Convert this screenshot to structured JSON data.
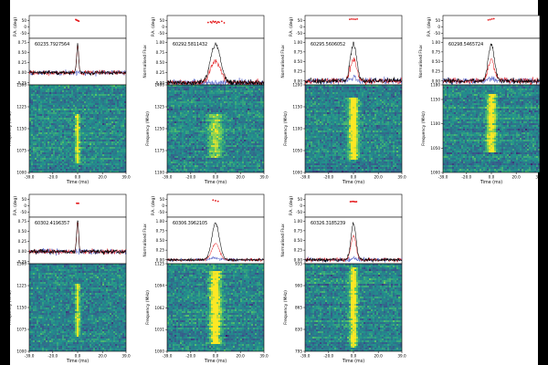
{
  "colors": {
    "page_background": "#000000",
    "figure_background": "#ffffff",
    "total_intensity": "#000000",
    "linear_polarisation": "#e41a1c",
    "circular_polarisation": "#3b4cc0",
    "pa_points": "#e41a1c",
    "dynamic_spectrum_colormap": "viridis"
  },
  "chart_data": [
    {
      "type": "line",
      "id": "panel-1",
      "label": "60235.7927564",
      "pa_ylabel": "P.A. (deg)",
      "flux_ylabel": "Normalised Flux",
      "freq_ylabel": "Frequency (MHz)",
      "xlabel": "Time (ms)",
      "pa_ticks": [
        "50",
        "0",
        "-50"
      ],
      "flux_ticks": [
        "0.75",
        "0.50",
        "0.25",
        "0.00",
        "-0.25"
      ],
      "freq_ticks": [
        "1300",
        "1225",
        "1150",
        "1075",
        "1000"
      ],
      "time_ticks": [
        "-39.0",
        "-20.0",
        "0.0",
        "20.0",
        "39.0"
      ],
      "xlim": [
        -39,
        39
      ],
      "pa_ylim": [
        -90,
        90
      ],
      "flux_ylim": [
        -0.3,
        0.85
      ],
      "freq_ylim": [
        1000,
        1300
      ],
      "pulse": {
        "center_ms": 0,
        "width_ms": 0.8,
        "peak_total": 0.72,
        "peak_linear": 0.7,
        "circular": 0.0
      },
      "noise": 0.045,
      "pa_points": [
        [
          -1.5,
          58
        ],
        [
          -1,
          55
        ],
        [
          -0.5,
          52
        ],
        [
          0,
          50
        ],
        [
          0.5,
          48
        ],
        [
          1,
          45
        ]
      ],
      "burst_band": [
        1030,
        1200
      ],
      "burst_strength": 0.8
    },
    {
      "type": "line",
      "id": "panel-2",
      "label": "60292.5811432",
      "pa_ylabel": "P.A. (deg)",
      "flux_ylabel": "Normalised Flux",
      "freq_ylabel": "Frequency (MHz)",
      "xlabel": "Time (ms)",
      "pa_ticks": [
        "50",
        "0",
        "-50"
      ],
      "flux_ticks": [
        "1.00",
        "0.75",
        "0.50",
        "0.25",
        "0.00"
      ],
      "freq_ticks": [
        "1400",
        "1325",
        "1250",
        "1175",
        "1100"
      ],
      "time_ticks": [
        "-39.0",
        "-20.0",
        "0.0",
        "20.0",
        "39.0"
      ],
      "xlim": [
        -39,
        39
      ],
      "pa_ylim": [
        -90,
        90
      ],
      "flux_ylim": [
        -0.05,
        1.1
      ],
      "freq_ylim": [
        1100,
        1400
      ],
      "pulse": {
        "center_ms": 0,
        "width_ms": 4,
        "peak_total": 0.95,
        "peak_linear": 0.55,
        "circular": 0.0
      },
      "noise": 0.06,
      "pa_points": [
        [
          -6,
          35
        ],
        [
          -4,
          40
        ],
        [
          -3,
          33
        ],
        [
          -2,
          45
        ],
        [
          -1,
          38
        ],
        [
          0,
          42
        ],
        [
          1,
          30
        ],
        [
          2,
          40
        ],
        [
          3,
          36
        ],
        [
          5,
          44
        ],
        [
          7,
          32
        ]
      ],
      "burst_band": [
        1150,
        1300
      ],
      "burst_strength": 0.5
    },
    {
      "type": "line",
      "id": "panel-3",
      "label": "60295.5606052",
      "pa_ylabel": "P.A. (deg)",
      "flux_ylabel": "Normalised Flux",
      "freq_ylabel": "Frequency (MHz)",
      "xlabel": "Time (ms)",
      "pa_ticks": [
        "50",
        "0",
        "-50"
      ],
      "flux_ticks": [
        "1.00",
        "0.75",
        "0.50",
        "0.25",
        "0.00"
      ],
      "freq_ticks": [
        "1200",
        "1150",
        "1100",
        "1050",
        "1000"
      ],
      "time_ticks": [
        "-39.0",
        "-20.0",
        "0.0",
        "20.0",
        "39.0"
      ],
      "xlim": [
        -39,
        39
      ],
      "pa_ylim": [
        -90,
        90
      ],
      "flux_ylim": [
        -0.1,
        1.1
      ],
      "freq_ylim": [
        1000,
        1200
      ],
      "pulse": {
        "center_ms": 0,
        "width_ms": 2.5,
        "peak_total": 0.95,
        "peak_linear": 0.55,
        "circular": 0.08
      },
      "noise": 0.06,
      "pa_points": [
        [
          -3,
          60
        ],
        [
          -1.5,
          62
        ],
        [
          0,
          61
        ],
        [
          1.5,
          60
        ],
        [
          3,
          62
        ]
      ],
      "burst_band": [
        1030,
        1170
      ],
      "burst_strength": 0.9
    },
    {
      "type": "line",
      "id": "panel-4",
      "label": "60298.5465724",
      "pa_ylabel": "P.A. (deg)",
      "flux_ylabel": "Normalised Flux",
      "freq_ylabel": "Frequency (MHz)",
      "xlabel": "Time (ms)",
      "pa_ticks": [
        "50",
        "0",
        "-50"
      ],
      "flux_ticks": [
        "1.00",
        "0.75",
        "0.50",
        "0.25",
        "0.00"
      ],
      "freq_ticks": [
        "1180",
        "1150",
        "1100",
        "1050",
        "1000"
      ],
      "time_ticks": [
        "-39.0",
        "-20.0",
        "0.0",
        "20.0",
        "39.0"
      ],
      "xlim": [
        -39,
        39
      ],
      "pa_ylim": [
        -90,
        90
      ],
      "flux_ylim": [
        -0.1,
        1.1
      ],
      "freq_ylim": [
        1000,
        1180
      ],
      "pulse": {
        "center_ms": 0,
        "width_ms": 2.5,
        "peak_total": 0.95,
        "peak_linear": 0.55,
        "circular": 0.05
      },
      "noise": 0.06,
      "pa_points": [
        [
          -2.5,
          55
        ],
        [
          -1,
          58
        ],
        [
          0.5,
          62
        ],
        [
          2,
          65
        ]
      ],
      "burst_band": [
        1040,
        1160
      ],
      "burst_strength": 0.85
    },
    {
      "type": "line",
      "id": "panel-5",
      "label": "60302.4196357",
      "pa_ylabel": "P.A. (deg)",
      "flux_ylabel": "Normalised Flux",
      "freq_ylabel": "Frequency (MHz)",
      "xlabel": "Time (ms)",
      "pa_ticks": [
        "50",
        "0",
        "-50"
      ],
      "flux_ticks": [
        "0.75",
        "0.50",
        "0.25",
        "0.00",
        "-0.25"
      ],
      "freq_ticks": [
        "1300",
        "1225",
        "1150",
        "1075",
        "1000"
      ],
      "time_ticks": [
        "-39.0",
        "-20.0",
        "0.0",
        "20.0",
        "39.0"
      ],
      "xlim": [
        -39,
        39
      ],
      "pa_ylim": [
        -90,
        90
      ],
      "flux_ylim": [
        -0.3,
        0.85
      ],
      "freq_ylim": [
        1000,
        1300
      ],
      "pulse": {
        "center_ms": 0,
        "width_ms": 0.8,
        "peak_total": 0.78,
        "peak_linear": 0.72,
        "circular": 0.0
      },
      "noise": 0.05,
      "pa_points": [
        [
          -0.8,
          20
        ],
        [
          -0.4,
          19
        ],
        [
          0,
          20
        ],
        [
          0.4,
          20
        ],
        [
          0.8,
          19
        ]
      ],
      "burst_band": [
        1050,
        1230
      ],
      "burst_strength": 0.75
    },
    {
      "type": "line",
      "id": "panel-6",
      "label": "60306.3962105",
      "pa_ylabel": "P.A. (deg)",
      "flux_ylabel": "Normalised Flux",
      "freq_ylabel": "Frequency (MHz)",
      "xlabel": "Time (ms)",
      "pa_ticks": [
        "50",
        "0",
        "-50"
      ],
      "flux_ticks": [
        "1.00",
        "0.75",
        "0.50",
        "0.25",
        "0.00"
      ],
      "freq_ticks": [
        "1125",
        "1094",
        "1062",
        "1031",
        "1000"
      ],
      "time_ticks": [
        "-39.0",
        "-20.0",
        "0.0",
        "20.0",
        "39.0"
      ],
      "xlim": [
        -39,
        39
      ],
      "pa_ylim": [
        -90,
        90
      ],
      "flux_ylim": [
        -0.1,
        1.1
      ],
      "freq_ylim": [
        1000,
        1125
      ],
      "pulse": {
        "center_ms": 0,
        "width_ms": 3,
        "peak_total": 0.95,
        "peak_linear": 0.42,
        "circular": 0.05
      },
      "noise": 0.03,
      "pa_points": [
        [
          -2,
          45
        ],
        [
          0,
          40
        ],
        [
          2,
          35
        ]
      ],
      "burst_band": [
        1010,
        1115
      ],
      "burst_strength": 0.95
    },
    {
      "type": "line",
      "id": "panel-7",
      "label": "60326.3185239",
      "pa_ylabel": "P.A. (deg)",
      "flux_ylabel": "Normalised Flux",
      "freq_ylabel": "Frequency (MHz)",
      "xlabel": "Time (ms)",
      "pa_ticks": [
        "50",
        "0",
        "-50"
      ],
      "flux_ticks": [
        "1.00",
        "0.75",
        "0.50",
        "0.25",
        "0.00"
      ],
      "freq_ticks": [
        "935",
        "900",
        "865",
        "830",
        "795"
      ],
      "time_ticks": [
        "-39.0",
        "-20.0",
        "0.0",
        "20.0",
        "39.0"
      ],
      "xlim": [
        -39,
        39
      ],
      "pa_ylim": [
        -90,
        90
      ],
      "flux_ylim": [
        -0.1,
        1.1
      ],
      "freq_ylim": [
        795,
        935
      ],
      "pulse": {
        "center_ms": 0,
        "width_ms": 2,
        "peak_total": 0.95,
        "peak_linear": 0.62,
        "circular": 0.05
      },
      "noise": 0.04,
      "pa_points": [
        [
          -2.5,
          32
        ],
        [
          -1.5,
          33
        ],
        [
          -0.5,
          34
        ],
        [
          0.5,
          33
        ],
        [
          1.5,
          31
        ],
        [
          2.5,
          32
        ]
      ],
      "burst_band": [
        800,
        930
      ],
      "burst_strength": 0.85
    }
  ]
}
